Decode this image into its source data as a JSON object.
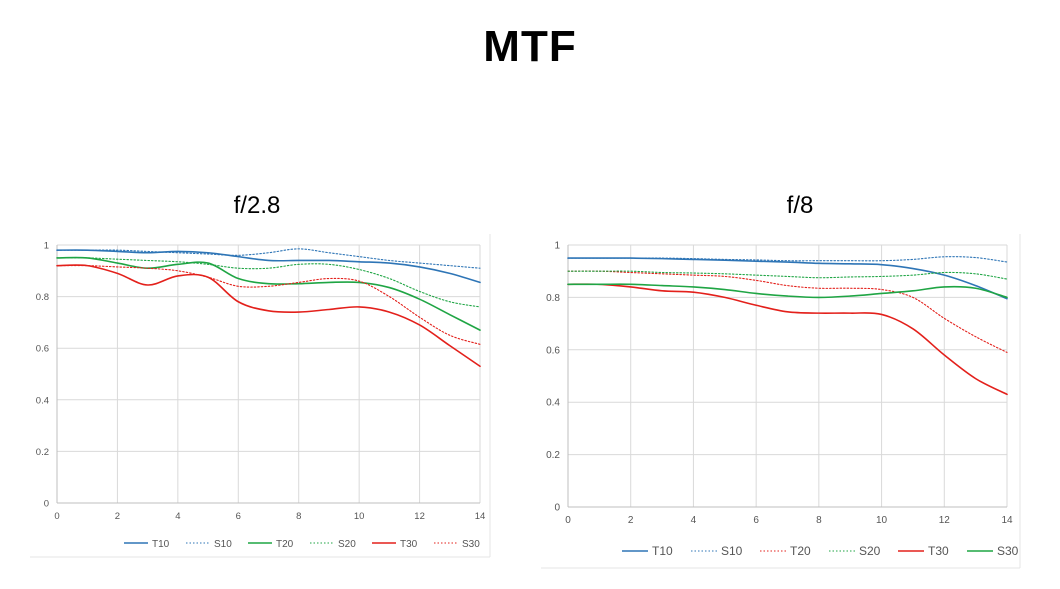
{
  "page_title": "MTF",
  "chart_data": [
    {
      "type": "line",
      "title": "f/2.8",
      "xlim": [
        0,
        14
      ],
      "ylim": [
        0,
        1
      ],
      "x_ticks": [
        "0",
        "2",
        "4",
        "6",
        "8",
        "10",
        "12",
        "14"
      ],
      "y_ticks": [
        "0",
        "0.2",
        "0.4",
        "0.6",
        "0.8",
        "1"
      ],
      "grid": "vertical",
      "legend_position": "bottom",
      "x": [
        0,
        1,
        2,
        3,
        4,
        5,
        6,
        7,
        8,
        9,
        10,
        11,
        12,
        13,
        14
      ],
      "series": [
        {
          "name": "T10",
          "color": "#2e75b6",
          "style": "solid",
          "values": [
            0.98,
            0.98,
            0.975,
            0.97,
            0.975,
            0.97,
            0.955,
            0.94,
            0.94,
            0.94,
            0.935,
            0.93,
            0.915,
            0.89,
            0.855
          ]
        },
        {
          "name": "S10",
          "color": "#2e75b6",
          "style": "dotted",
          "values": [
            0.98,
            0.98,
            0.98,
            0.975,
            0.97,
            0.965,
            0.96,
            0.97,
            0.985,
            0.97,
            0.955,
            0.94,
            0.93,
            0.92,
            0.91
          ]
        },
        {
          "name": "T20",
          "color": "#1fa544",
          "style": "solid",
          "values": [
            0.95,
            0.95,
            0.93,
            0.91,
            0.925,
            0.93,
            0.87,
            0.85,
            0.85,
            0.855,
            0.855,
            0.835,
            0.79,
            0.73,
            0.67
          ]
        },
        {
          "name": "S20",
          "color": "#1fa544",
          "style": "dotted",
          "values": [
            0.95,
            0.95,
            0.945,
            0.94,
            0.935,
            0.925,
            0.91,
            0.91,
            0.925,
            0.925,
            0.905,
            0.87,
            0.82,
            0.78,
            0.76
          ]
        },
        {
          "name": "T30",
          "color": "#e3201b",
          "style": "solid",
          "values": [
            0.92,
            0.92,
            0.89,
            0.845,
            0.88,
            0.875,
            0.78,
            0.745,
            0.74,
            0.75,
            0.76,
            0.74,
            0.69,
            0.61,
            0.53
          ]
        },
        {
          "name": "S30",
          "color": "#e3201b",
          "style": "dotted",
          "values": [
            0.92,
            0.92,
            0.915,
            0.91,
            0.9,
            0.875,
            0.84,
            0.84,
            0.855,
            0.87,
            0.86,
            0.8,
            0.72,
            0.65,
            0.615
          ]
        }
      ]
    },
    {
      "type": "line",
      "title": "f/8",
      "xlim": [
        0,
        14
      ],
      "ylim": [
        0,
        1
      ],
      "x_ticks": [
        "0",
        "2",
        "4",
        "6",
        "8",
        "10",
        "12",
        "14"
      ],
      "y_ticks": [
        "0",
        "0.2",
        "0.4",
        "0.6",
        "0.8",
        "1"
      ],
      "grid": "vertical",
      "legend_position": "bottom",
      "x": [
        0,
        1,
        2,
        3,
        4,
        5,
        6,
        7,
        8,
        9,
        10,
        11,
        12,
        13,
        14
      ],
      "series": [
        {
          "name": "T10",
          "color": "#2e75b6",
          "style": "solid",
          "values": [
            0.95,
            0.95,
            0.95,
            0.948,
            0.945,
            0.942,
            0.938,
            0.935,
            0.93,
            0.928,
            0.925,
            0.91,
            0.885,
            0.845,
            0.795
          ]
        },
        {
          "name": "S10",
          "color": "#2e75b6",
          "style": "dotted",
          "values": [
            0.95,
            0.95,
            0.95,
            0.95,
            0.948,
            0.945,
            0.943,
            0.94,
            0.94,
            0.94,
            0.94,
            0.945,
            0.955,
            0.952,
            0.935
          ]
        },
        {
          "name": "T20",
          "color": "#e3201b",
          "style": "dotted",
          "values": [
            0.9,
            0.9,
            0.895,
            0.89,
            0.885,
            0.88,
            0.865,
            0.845,
            0.835,
            0.835,
            0.83,
            0.8,
            0.72,
            0.65,
            0.59
          ]
        },
        {
          "name": "S20",
          "color": "#1fa544",
          "style": "dotted",
          "values": [
            0.9,
            0.9,
            0.9,
            0.895,
            0.893,
            0.89,
            0.885,
            0.88,
            0.875,
            0.878,
            0.88,
            0.885,
            0.895,
            0.89,
            0.87
          ]
        },
        {
          "name": "T30",
          "color": "#e3201b",
          "style": "solid",
          "values": [
            0.85,
            0.85,
            0.84,
            0.825,
            0.82,
            0.8,
            0.77,
            0.745,
            0.74,
            0.74,
            0.735,
            0.68,
            0.58,
            0.49,
            0.43
          ]
        },
        {
          "name": "S30",
          "color": "#1fa544",
          "style": "solid",
          "values": [
            0.85,
            0.85,
            0.85,
            0.845,
            0.84,
            0.83,
            0.815,
            0.805,
            0.8,
            0.805,
            0.815,
            0.825,
            0.84,
            0.835,
            0.8
          ]
        }
      ]
    }
  ]
}
